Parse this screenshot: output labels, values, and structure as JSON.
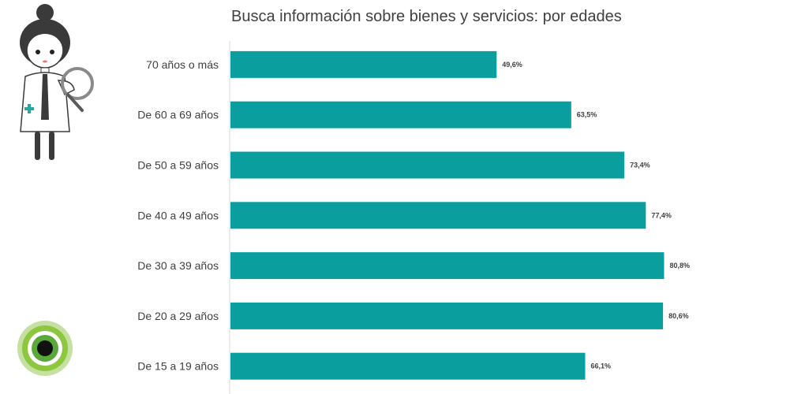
{
  "chart_data": {
    "type": "bar",
    "orientation": "horizontal",
    "title": "Busca información sobre bienes y servicios: por edades",
    "categories": [
      "70 años o más",
      "De 60 a 69 años",
      "De 50 a 59 años",
      "De 40 a 49 años",
      "De 30 a 39 años",
      "De 20 a 29 años",
      "De 15 a 19 años"
    ],
    "values": [
      49.6,
      63.5,
      73.4,
      77.4,
      80.8,
      80.6,
      66.1
    ],
    "value_labels": [
      "49,6%",
      "63,5%",
      "73,4%",
      "77,4%",
      "80,8%",
      "80,6%",
      "66,1%"
    ],
    "xlim": [
      0,
      100
    ],
    "grid": false,
    "legend": "none",
    "bar_color": "#0a9e9e",
    "axis_color": "#d9d9d9"
  },
  "decorations": {
    "mascot": "detective-woman-with-magnifier-icon",
    "logo": "green-circle-logo-icon"
  }
}
